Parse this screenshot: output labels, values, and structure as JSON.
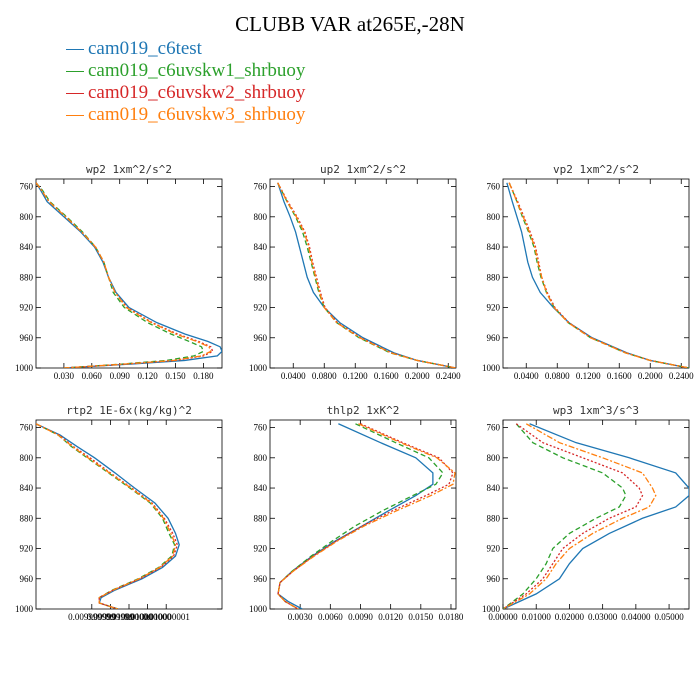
{
  "title": "CLUBB VAR at265E,-28N",
  "colors": {
    "cam019_c6test": "#1f77b4",
    "cam019_c6uvskw1_shrbuoy": "#2ca02c",
    "cam019_c6uvskw2_shrbuoy": "#d62728",
    "cam019_c6uvskw3_shrbuoy": "#ff7f0e"
  },
  "legend": [
    {
      "name": "cam019_c6test",
      "color": "#1f77b4",
      "dash": ""
    },
    {
      "name": "cam019_c6uvskw1_shrbuoy",
      "color": "#2ca02c",
      "dash": "5,3"
    },
    {
      "name": "cam019_c6uvskw2_shrbuoy",
      "color": "#d62728",
      "dash": "2,2"
    },
    {
      "name": "cam019_c6uvskw3_shrbuoy",
      "color": "#ff7f0e",
      "dash": "6,2,2,2"
    }
  ],
  "chart_data": [
    {
      "type": "line",
      "title": "wp2 1xm^2/s^2",
      "xlim": [
        0,
        0.2
      ],
      "ylim": [
        1000,
        750
      ],
      "xticks": [
        "0.030",
        "0.060",
        "0.090",
        "0.120",
        "0.150",
        "0.180"
      ],
      "xtick_values": [
        0.03,
        0.06,
        0.09,
        0.12,
        0.15,
        0.18
      ],
      "yticks": [
        760,
        800,
        840,
        880,
        920,
        960,
        1000
      ],
      "y": [
        755,
        765,
        780,
        800,
        820,
        840,
        860,
        880,
        900,
        920,
        940,
        955,
        965,
        972,
        978,
        984,
        990,
        995,
        1000
      ],
      "series": [
        {
          "name": "cam019_c6test",
          "values": [
            0.0,
            0.005,
            0.012,
            0.03,
            0.048,
            0.063,
            0.072,
            0.078,
            0.086,
            0.1,
            0.13,
            0.16,
            0.185,
            0.198,
            0.2,
            0.195,
            0.16,
            0.1,
            0.03
          ]
        },
        {
          "name": "cam019_c6uvskw1_shrbuoy",
          "values": [
            0.0,
            0.007,
            0.015,
            0.033,
            0.05,
            0.064,
            0.073,
            0.078,
            0.083,
            0.095,
            0.12,
            0.145,
            0.165,
            0.178,
            0.18,
            0.17,
            0.14,
            0.09,
            0.03
          ]
        },
        {
          "name": "cam019_c6uvskw2_shrbuoy",
          "values": [
            0.0,
            0.006,
            0.014,
            0.032,
            0.049,
            0.064,
            0.073,
            0.078,
            0.085,
            0.098,
            0.125,
            0.152,
            0.175,
            0.188,
            0.19,
            0.18,
            0.15,
            0.095,
            0.03
          ]
        },
        {
          "name": "cam019_c6uvskw3_shrbuoy",
          "values": [
            0.0,
            0.006,
            0.014,
            0.032,
            0.049,
            0.064,
            0.073,
            0.078,
            0.085,
            0.097,
            0.124,
            0.15,
            0.173,
            0.186,
            0.188,
            0.178,
            0.148,
            0.093,
            0.03
          ]
        }
      ]
    },
    {
      "type": "line",
      "title": "up2 1xm^2/s^2",
      "xlim": [
        0.01,
        0.25
      ],
      "ylim": [
        1000,
        750
      ],
      "xticks": [
        "0.0400",
        "0.0800",
        "0.1200",
        "0.1600",
        "0.2000",
        "0.2400"
      ],
      "xtick_values": [
        0.04,
        0.08,
        0.12,
        0.16,
        0.2,
        0.24
      ],
      "yticks": [
        760,
        800,
        840,
        880,
        920,
        960,
        1000
      ],
      "y": [
        755,
        780,
        800,
        820,
        840,
        860,
        880,
        900,
        920,
        940,
        960,
        980,
        990,
        1000
      ],
      "series": [
        {
          "name": "cam019_c6test",
          "values": [
            0.02,
            0.028,
            0.036,
            0.043,
            0.048,
            0.053,
            0.058,
            0.066,
            0.08,
            0.1,
            0.13,
            0.17,
            0.2,
            0.25
          ]
        },
        {
          "name": "cam019_c6uvskw1_shrbuoy",
          "values": [
            0.02,
            0.032,
            0.043,
            0.052,
            0.058,
            0.063,
            0.068,
            0.073,
            0.08,
            0.096,
            0.125,
            0.165,
            0.2,
            0.25
          ]
        },
        {
          "name": "cam019_c6uvskw2_shrbuoy",
          "values": [
            0.02,
            0.033,
            0.045,
            0.055,
            0.061,
            0.065,
            0.07,
            0.075,
            0.081,
            0.097,
            0.127,
            0.167,
            0.2,
            0.25
          ]
        },
        {
          "name": "cam019_c6uvskw3_shrbuoy",
          "values": [
            0.02,
            0.032,
            0.044,
            0.054,
            0.06,
            0.064,
            0.069,
            0.074,
            0.08,
            0.096,
            0.126,
            0.166,
            0.2,
            0.25
          ]
        }
      ]
    },
    {
      "type": "line",
      "title": "vp2 1xm^2/s^2",
      "xlim": [
        0.01,
        0.25
      ],
      "ylim": [
        1000,
        750
      ],
      "xticks": [
        "0.0400",
        "0.0800",
        "0.1200",
        "0.1600",
        "0.2000",
        "0.2400"
      ],
      "xtick_values": [
        0.04,
        0.08,
        0.12,
        0.16,
        0.2,
        0.24
      ],
      "yticks": [
        760,
        800,
        840,
        880,
        920,
        960,
        1000
      ],
      "y": [
        755,
        780,
        800,
        820,
        840,
        860,
        880,
        900,
        920,
        940,
        960,
        980,
        990,
        1000
      ],
      "series": [
        {
          "name": "cam019_c6test",
          "values": [
            0.015,
            0.022,
            0.028,
            0.034,
            0.038,
            0.042,
            0.048,
            0.058,
            0.075,
            0.095,
            0.125,
            0.17,
            0.2,
            0.25
          ]
        },
        {
          "name": "cam019_c6uvskw1_shrbuoy",
          "values": [
            0.018,
            0.028,
            0.035,
            0.043,
            0.05,
            0.054,
            0.059,
            0.066,
            0.076,
            0.094,
            0.123,
            0.168,
            0.2,
            0.25
          ]
        },
        {
          "name": "cam019_c6uvskw2_shrbuoy",
          "values": [
            0.018,
            0.029,
            0.037,
            0.045,
            0.052,
            0.056,
            0.06,
            0.067,
            0.077,
            0.095,
            0.124,
            0.169,
            0.2,
            0.25
          ]
        },
        {
          "name": "cam019_c6uvskw3_shrbuoy",
          "values": [
            0.018,
            0.028,
            0.036,
            0.044,
            0.051,
            0.055,
            0.06,
            0.066,
            0.076,
            0.094,
            0.123,
            0.168,
            0.2,
            0.25
          ]
        }
      ]
    },
    {
      "type": "line",
      "title": "rtp2 1E-6x(kg/kg)^2",
      "xlim": [
        0.00999999,
        0.01000001
      ],
      "ylim": [
        1000,
        750
      ],
      "xticks": [
        "0.009999999",
        "0.009999999",
        "0.010000000",
        "0.010000000",
        "0.010000001"
      ],
      "xtick_values": [
        0.009999996,
        0.009999998,
        0.01,
        0.010000002,
        0.010000004
      ],
      "yticks": [
        760,
        800,
        840,
        880,
        920,
        960,
        1000
      ],
      "y": [
        755,
        770,
        785,
        800,
        820,
        840,
        860,
        880,
        900,
        915,
        930,
        945,
        960,
        975,
        985,
        992,
        1000
      ],
      "series": [
        {
          "name": "cam019_c6test",
          "values": [
            0.00999999,
            0.0099999926,
            0.0099999944,
            0.0099999963,
            0.0099999985,
            0.0100000006,
            0.0100000028,
            0.0100000042,
            0.010000005,
            0.0100000054,
            0.010000005,
            0.0100000036,
            0.0100000014,
            0.0099999985,
            0.009999997,
            0.0099999968,
            0.0099999988
          ]
        },
        {
          "name": "cam019_c6uvskw1_shrbuoy",
          "values": [
            0.00999999,
            0.0099999924,
            0.0099999938,
            0.0099999955,
            0.0099999978,
            0.0100000001,
            0.0100000023,
            0.0100000036,
            0.0100000043,
            0.0100000049,
            0.0100000046,
            0.0100000032,
            0.010000001,
            0.0099999982,
            0.0099999968,
            0.0099999968,
            0.0099999988
          ]
        },
        {
          "name": "cam019_c6uvskw2_shrbuoy",
          "values": [
            0.00999999,
            0.0099999925,
            0.009999994,
            0.0099999958,
            0.009999998,
            0.0100000003,
            0.0100000025,
            0.0100000038,
            0.0100000047,
            0.0100000052,
            0.0100000048,
            0.0100000034,
            0.0100000012,
            0.0099999983,
            0.0099999968,
            0.0099999968,
            0.0099999988
          ]
        },
        {
          "name": "cam019_c6uvskw3_shrbuoy",
          "values": [
            0.00999999,
            0.0099999924,
            0.0099999939,
            0.0099999956,
            0.0099999979,
            0.0100000002,
            0.0100000024,
            0.0100000037,
            0.0100000045,
            0.010000005,
            0.0100000047,
            0.0100000033,
            0.0100000011,
            0.0099999983,
            0.0099999968,
            0.0099999968,
            0.0099999988
          ]
        }
      ]
    },
    {
      "type": "line",
      "title": "thlp2 1xK^2",
      "xlim": [
        0,
        0.0185
      ],
      "ylim": [
        1000,
        750
      ],
      "xticks": [
        "0.0030",
        "0.0060",
        "0.0090",
        "0.0120",
        "0.0150",
        "0.0180"
      ],
      "xtick_values": [
        0.003,
        0.006,
        0.009,
        0.012,
        0.015,
        0.018
      ],
      "yticks": [
        760,
        800,
        840,
        880,
        920,
        960,
        1000
      ],
      "y": [
        755,
        780,
        800,
        820,
        835,
        850,
        870,
        890,
        910,
        930,
        950,
        965,
        980,
        990,
        1000
      ],
      "series": [
        {
          "name": "cam019_c6test",
          "values": [
            0.0068,
            0.011,
            0.0145,
            0.0162,
            0.0162,
            0.0145,
            0.0118,
            0.0092,
            0.0065,
            0.0042,
            0.0022,
            0.001,
            0.0008,
            0.0018,
            0.0032
          ]
        },
        {
          "name": "cam019_c6uvskw1_shrbuoy",
          "values": [
            0.0085,
            0.0125,
            0.0158,
            0.0172,
            0.0165,
            0.0142,
            0.0112,
            0.0085,
            0.0062,
            0.0041,
            0.0022,
            0.001,
            0.0008,
            0.0015,
            0.0028
          ]
        },
        {
          "name": "cam019_c6uvskw2_shrbuoy",
          "values": [
            0.009,
            0.0132,
            0.0168,
            0.0182,
            0.0178,
            0.0155,
            0.0122,
            0.0092,
            0.0066,
            0.0043,
            0.0023,
            0.001,
            0.0008,
            0.0015,
            0.0028
          ]
        },
        {
          "name": "cam019_c6uvskw3_shrbuoy",
          "values": [
            0.0088,
            0.013,
            0.0166,
            0.0184,
            0.0182,
            0.016,
            0.0126,
            0.0094,
            0.0067,
            0.0044,
            0.0023,
            0.001,
            0.0008,
            0.0015,
            0.0028
          ]
        }
      ]
    },
    {
      "type": "line",
      "title": "wp3 1xm^3/s^3",
      "xlim": [
        0,
        0.056
      ],
      "ylim": [
        1000,
        750
      ],
      "xticks": [
        "0.00000",
        "0.01000",
        "0.02000",
        "0.03000",
        "0.04000",
        "0.05000"
      ],
      "xtick_values": [
        0,
        0.01,
        0.02,
        0.03,
        0.04,
        0.05
      ],
      "yticks": [
        760,
        800,
        840,
        880,
        920,
        960,
        1000
      ],
      "y": [
        755,
        780,
        800,
        820,
        840,
        850,
        865,
        880,
        900,
        920,
        940,
        960,
        980,
        1000
      ],
      "series": [
        {
          "name": "cam019_c6test",
          "values": [
            0.008,
            0.022,
            0.038,
            0.052,
            0.056,
            0.056,
            0.052,
            0.042,
            0.032,
            0.024,
            0.02,
            0.017,
            0.01,
            0.0
          ]
        },
        {
          "name": "cam019_c6uvskw1_shrbuoy",
          "values": [
            0.004,
            0.009,
            0.018,
            0.03,
            0.036,
            0.037,
            0.035,
            0.028,
            0.02,
            0.015,
            0.013,
            0.01,
            0.006,
            0.0
          ]
        },
        {
          "name": "cam019_c6uvskw2_shrbuoy",
          "values": [
            0.004,
            0.012,
            0.024,
            0.036,
            0.041,
            0.042,
            0.04,
            0.032,
            0.024,
            0.018,
            0.015,
            0.012,
            0.007,
            0.0
          ]
        },
        {
          "name": "cam019_c6uvskw3_shrbuoy",
          "values": [
            0.007,
            0.017,
            0.03,
            0.042,
            0.045,
            0.046,
            0.044,
            0.036,
            0.027,
            0.02,
            0.016,
            0.013,
            0.008,
            0.0
          ]
        }
      ]
    }
  ]
}
